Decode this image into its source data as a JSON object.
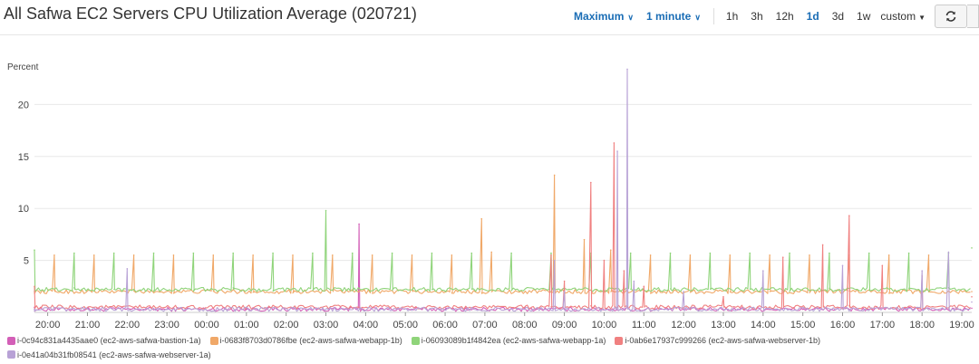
{
  "header": {
    "title": "All Safwa EC2 Servers CPU Utilization Average (020721)",
    "statistic": "Maximum",
    "period": "1 minute",
    "ranges": [
      "1h",
      "3h",
      "12h",
      "1d",
      "3d",
      "1w"
    ],
    "active_range": "1d",
    "custom_label": "custom",
    "refresh_icon": "refresh-icon"
  },
  "chart_data": {
    "type": "line",
    "ylabel": "Percent",
    "ylim": [
      0,
      25
    ],
    "yticks": [
      5,
      10,
      15,
      20
    ],
    "xlim": [
      "19:40",
      "19:15"
    ],
    "xticks": [
      "20:00",
      "21:00",
      "22:00",
      "23:00",
      "00:00",
      "01:00",
      "02:00",
      "03:00",
      "04:00",
      "05:00",
      "06:00",
      "07:00",
      "08:00",
      "09:00",
      "10:00",
      "11:00",
      "12:00",
      "13:00",
      "14:00",
      "15:00",
      "16:00",
      "17:00",
      "18:00",
      "19:00"
    ],
    "grid": "horizontal",
    "legend_position": "bottom",
    "series": [
      {
        "name": "i-0c94c831a4435aae0 (ec2-aws-safwa-bastion-1a)",
        "color": "#d35fb7",
        "baseline": 0.3,
        "points": [
          [
            "19:40",
            0.5
          ],
          [
            "21:00",
            0.4
          ],
          [
            "23:00",
            0.3
          ],
          [
            "01:00",
            0.3
          ],
          [
            "03:15",
            0.4
          ],
          [
            "03:50",
            8.5
          ],
          [
            "03:52",
            0.4
          ],
          [
            "06:00",
            0.3
          ],
          [
            "09:00",
            0.3
          ],
          [
            "12:00",
            0.3
          ],
          [
            "15:00",
            0.3
          ],
          [
            "18:00",
            0.3
          ],
          [
            "19:15",
            0.4
          ]
        ]
      },
      {
        "name": "i-0683f8703d0786fbe (ec2-aws-safwa-webapp-1b)",
        "color": "#f0a868",
        "baseline": 2.0,
        "points": [
          [
            "19:40",
            2.0
          ],
          [
            "20:10",
            5.5
          ],
          [
            "21:10",
            5.5
          ],
          [
            "22:10",
            5.5
          ],
          [
            "23:10",
            5.5
          ],
          [
            "00:10",
            5.5
          ],
          [
            "01:10",
            5.5
          ],
          [
            "02:10",
            5.5
          ],
          [
            "03:10",
            5.5
          ],
          [
            "04:10",
            5.5
          ],
          [
            "05:10",
            5.5
          ],
          [
            "06:10",
            5.5
          ],
          [
            "06:55",
            9.0
          ],
          [
            "07:10",
            5.8
          ],
          [
            "08:45",
            13.2
          ],
          [
            "09:30",
            7.0
          ],
          [
            "10:10",
            6.0
          ],
          [
            "11:10",
            5.5
          ],
          [
            "12:10",
            5.5
          ],
          [
            "13:10",
            5.5
          ],
          [
            "14:10",
            5.5
          ],
          [
            "15:10",
            5.5
          ],
          [
            "16:10",
            5.5
          ],
          [
            "17:10",
            5.5
          ],
          [
            "18:10",
            5.5
          ],
          [
            "19:15",
            2.0
          ]
        ]
      },
      {
        "name": "i-06093089b1f4842ea (ec2-aws-safwa-webapp-1a)",
        "color": "#8fd47a",
        "baseline": 2.2,
        "points": [
          [
            "19:40",
            6.0
          ],
          [
            "20:40",
            5.7
          ],
          [
            "21:40",
            5.7
          ],
          [
            "22:40",
            5.7
          ],
          [
            "23:40",
            5.7
          ],
          [
            "00:40",
            5.7
          ],
          [
            "01:40",
            5.7
          ],
          [
            "02:40",
            5.7
          ],
          [
            "03:00",
            9.8
          ],
          [
            "03:40",
            5.7
          ],
          [
            "04:40",
            5.7
          ],
          [
            "05:40",
            5.7
          ],
          [
            "06:40",
            5.7
          ],
          [
            "07:40",
            5.7
          ],
          [
            "08:40",
            5.7
          ],
          [
            "09:40",
            5.7
          ],
          [
            "10:40",
            5.7
          ],
          [
            "11:40",
            5.7
          ],
          [
            "12:40",
            5.7
          ],
          [
            "13:40",
            5.7
          ],
          [
            "14:40",
            5.7
          ],
          [
            "15:40",
            5.7
          ],
          [
            "16:40",
            5.7
          ],
          [
            "17:40",
            5.7
          ],
          [
            "18:40",
            5.7
          ],
          [
            "19:15",
            6.2
          ]
        ]
      },
      {
        "name": "i-0ab6e17937c999266 (ec2-aws-safwa-webserver-1b)",
        "color": "#f08080",
        "baseline": 0.5,
        "points": [
          [
            "19:40",
            2.5
          ],
          [
            "19:50",
            0.5
          ],
          [
            "08:00",
            0.5
          ],
          [
            "08:40",
            5.5
          ],
          [
            "09:00",
            3.0
          ],
          [
            "09:40",
            12.5
          ],
          [
            "10:00",
            5.0
          ],
          [
            "10:15",
            16.3
          ],
          [
            "10:30",
            4.0
          ],
          [
            "11:00",
            2.5
          ],
          [
            "13:00",
            1.5
          ],
          [
            "14:30",
            5.3
          ],
          [
            "15:30",
            6.5
          ],
          [
            "16:10",
            9.3
          ],
          [
            "17:00",
            4.5
          ],
          [
            "18:00",
            3.5
          ],
          [
            "19:15",
            1.5
          ]
        ]
      },
      {
        "name": "i-0e41a04b31fb08541 (ec2-aws-safwa-webserver-1a)",
        "color": "#b8a2d6",
        "baseline": 0.3,
        "points": [
          [
            "19:40",
            0.3
          ],
          [
            "22:00",
            4.2
          ],
          [
            "23:00",
            0.3
          ],
          [
            "08:00",
            0.3
          ],
          [
            "08:45",
            5.0
          ],
          [
            "09:00",
            2.0
          ],
          [
            "10:20",
            15.5
          ],
          [
            "10:35",
            23.4
          ],
          [
            "10:45",
            3.0
          ],
          [
            "12:00",
            2.0
          ],
          [
            "14:00",
            4.0
          ],
          [
            "16:00",
            4.5
          ],
          [
            "18:00",
            4.0
          ],
          [
            "18:40",
            5.8
          ],
          [
            "19:15",
            1.0
          ]
        ]
      }
    ]
  }
}
